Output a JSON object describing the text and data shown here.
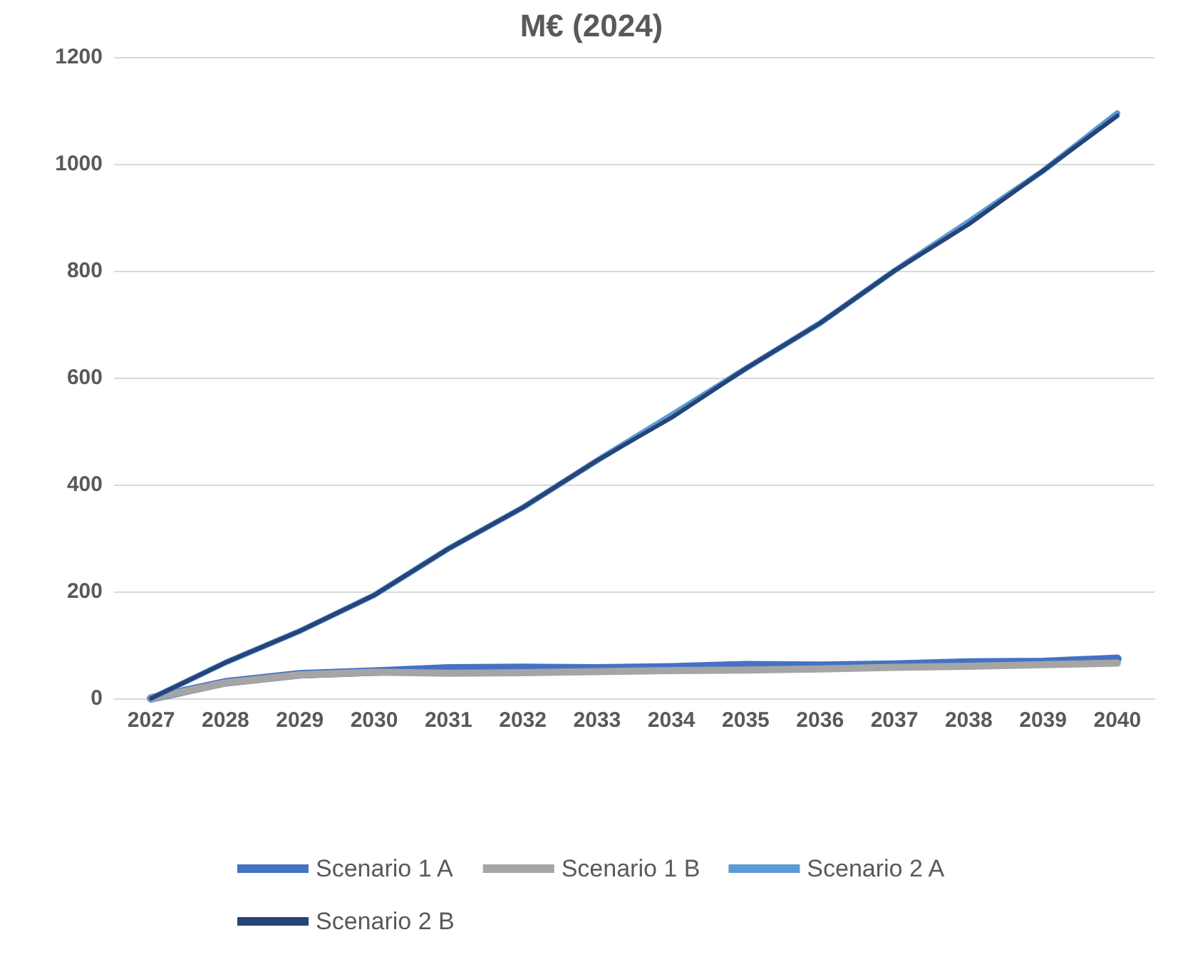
{
  "chart_data": {
    "type": "line",
    "title": "M€ (2024)",
    "categories": [
      "2027",
      "2028",
      "2029",
      "2030",
      "2031",
      "2032",
      "2033",
      "2034",
      "2035",
      "2036",
      "2037",
      "2038",
      "2039",
      "2040"
    ],
    "series": [
      {
        "name": "Scenario 1 A",
        "color": "#4472c4",
        "values": [
          0,
          30,
          45,
          50,
          56,
          57,
          56,
          58,
          62,
          61,
          63,
          67,
          68,
          74
        ]
      },
      {
        "name": "Scenario 1 B",
        "color": "#a5a5a5",
        "values": [
          0,
          29,
          44,
          49,
          47,
          48,
          50,
          52,
          53,
          55,
          58,
          60,
          63,
          66
        ]
      },
      {
        "name": "Scenario 2 A",
        "color": "#5b9bd5",
        "values": [
          0,
          67,
          126,
          193,
          280,
          357,
          445,
          530,
          617,
          702,
          800,
          892,
          987,
          1095
        ]
      },
      {
        "name": "Scenario 2 B",
        "color": "#264478",
        "values": [
          0,
          67,
          126,
          193,
          280,
          357,
          445,
          525,
          617,
          702,
          800,
          887,
          987,
          1090
        ]
      }
    ],
    "ylim": [
      0,
      1200
    ],
    "yticks": [
      0,
      200,
      400,
      600,
      800,
      1000,
      1200
    ],
    "grid": "y",
    "legend": "bottom",
    "marker": "none",
    "line_style": "solid"
  }
}
